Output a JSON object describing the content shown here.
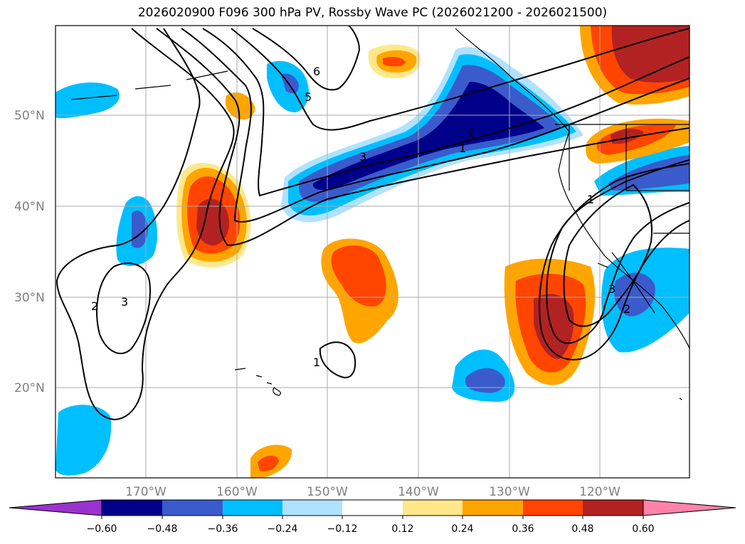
{
  "title": "2026020900 F096 300 hPa PV, Rossby Wave PC (2026021200 - 2026021500)",
  "map": {
    "latitude_labels": [
      "50°N",
      "40°N",
      "30°N",
      "20°N"
    ],
    "longitude_labels": [
      "170°W",
      "160°W",
      "150°W",
      "140°W",
      "130°W",
      "120°W"
    ],
    "contour_labels": [
      "6",
      "5",
      "2",
      "1",
      "3",
      "1",
      "2",
      "3",
      "1",
      "2",
      "3"
    ]
  },
  "colorbar": {
    "ticks": [
      "−0.60",
      "−0.48",
      "−0.36",
      "−0.24",
      "−0.12",
      "0.12",
      "0.24",
      "0.36",
      "0.48",
      "0.60"
    ],
    "colors": [
      "#9a32cd",
      "#00008b",
      "#3a5bcc",
      "#00bfff",
      "#b0e2ff",
      "#ffffff",
      "#ffe88a",
      "#ffa500",
      "#ff4500",
      "#b22222",
      "#ff82ab"
    ]
  },
  "colors": {
    "grid": "#aaaaaa",
    "coast": "#000000",
    "contour": "#000000"
  }
}
